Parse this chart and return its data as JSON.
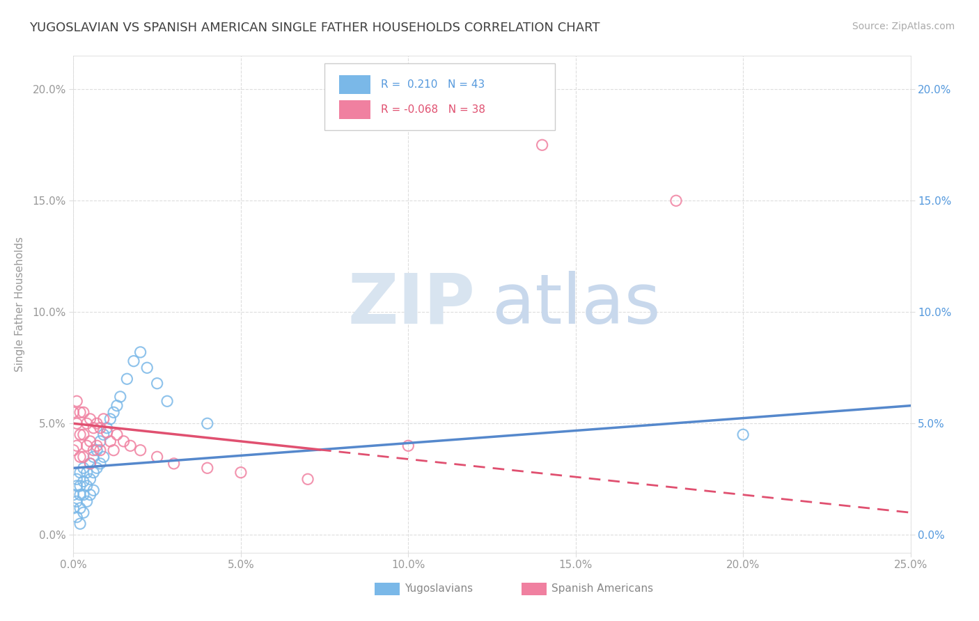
{
  "title": "YUGOSLAVIAN VS SPANISH AMERICAN SINGLE FATHER HOUSEHOLDS CORRELATION CHART",
  "source": "Source: ZipAtlas.com",
  "ylabel": "Single Father Households",
  "xlim": [
    0.0,
    0.25
  ],
  "ylim": [
    -0.008,
    0.215
  ],
  "blue_color": "#7ab8e8",
  "pink_color": "#f080a0",
  "blue_line_color": "#5588cc",
  "pink_line_color": "#e05070",
  "right_axis_color": "#5599dd",
  "left_axis_color": "#999999",
  "background_color": "#ffffff",
  "grid_color": "#dddddd",
  "title_color": "#404040",
  "blue_line_y0": 0.03,
  "blue_line_y1": 0.058,
  "pink_line_y0": 0.05,
  "pink_line_y1": 0.01,
  "yugo_x": [
    0.0,
    0.0,
    0.001,
    0.001,
    0.001,
    0.001,
    0.002,
    0.002,
    0.002,
    0.002,
    0.002,
    0.003,
    0.003,
    0.003,
    0.003,
    0.004,
    0.004,
    0.004,
    0.005,
    0.005,
    0.005,
    0.006,
    0.006,
    0.006,
    0.007,
    0.007,
    0.008,
    0.008,
    0.009,
    0.009,
    0.01,
    0.011,
    0.012,
    0.013,
    0.014,
    0.016,
    0.018,
    0.02,
    0.022,
    0.025,
    0.028,
    0.04,
    0.2
  ],
  "yugo_y": [
    0.018,
    0.012,
    0.025,
    0.022,
    0.015,
    0.008,
    0.028,
    0.022,
    0.018,
    0.012,
    0.005,
    0.03,
    0.024,
    0.018,
    0.01,
    0.028,
    0.022,
    0.015,
    0.032,
    0.025,
    0.018,
    0.035,
    0.028,
    0.02,
    0.038,
    0.03,
    0.042,
    0.032,
    0.045,
    0.035,
    0.048,
    0.052,
    0.055,
    0.058,
    0.062,
    0.07,
    0.078,
    0.082,
    0.075,
    0.068,
    0.06,
    0.05,
    0.045
  ],
  "span_x": [
    0.0,
    0.0,
    0.001,
    0.001,
    0.001,
    0.002,
    0.002,
    0.002,
    0.003,
    0.003,
    0.003,
    0.004,
    0.004,
    0.005,
    0.005,
    0.005,
    0.006,
    0.006,
    0.007,
    0.007,
    0.008,
    0.008,
    0.009,
    0.01,
    0.011,
    0.012,
    0.013,
    0.015,
    0.017,
    0.02,
    0.025,
    0.03,
    0.04,
    0.05,
    0.07,
    0.1,
    0.14,
    0.18
  ],
  "span_y": [
    0.055,
    0.038,
    0.06,
    0.05,
    0.04,
    0.055,
    0.045,
    0.035,
    0.055,
    0.045,
    0.035,
    0.05,
    0.04,
    0.052,
    0.042,
    0.032,
    0.048,
    0.038,
    0.05,
    0.04,
    0.048,
    0.038,
    0.052,
    0.046,
    0.042,
    0.038,
    0.045,
    0.042,
    0.04,
    0.038,
    0.035,
    0.032,
    0.03,
    0.028,
    0.025,
    0.04,
    0.175,
    0.15
  ]
}
